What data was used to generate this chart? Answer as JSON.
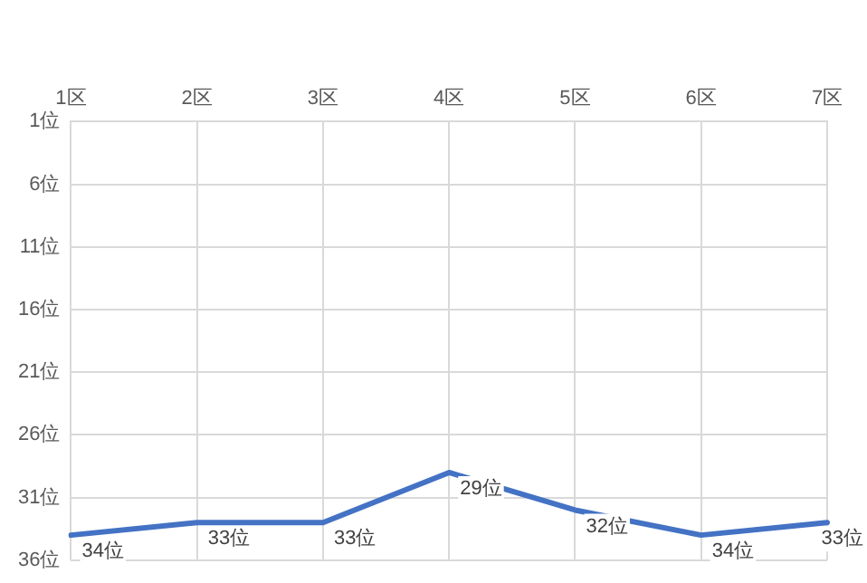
{
  "chart_data": {
    "type": "line",
    "categories": [
      "1区",
      "2区",
      "3区",
      "4区",
      "5区",
      "6区",
      "7区"
    ],
    "series": [
      {
        "color": "#4472c4",
        "values": [
          34,
          33,
          33,
          29,
          32,
          34,
          33
        ],
        "value_labels": [
          "34位",
          "33位",
          "33位",
          "29位",
          "32位",
          "34位",
          "33位"
        ]
      }
    ],
    "ylim": [
      36,
      1
    ],
    "yticks": [
      {
        "value": 1,
        "label": "1位"
      },
      {
        "value": 6,
        "label": "6位"
      },
      {
        "value": 11,
        "label": "11位"
      },
      {
        "value": 16,
        "label": "16位"
      },
      {
        "value": 21,
        "label": "21位"
      },
      {
        "value": 26,
        "label": "26位"
      },
      {
        "value": 31,
        "label": "31位"
      },
      {
        "value": 36,
        "label": "36位"
      }
    ],
    "grid": true,
    "legend": false,
    "marker": "none",
    "line_style": "solid"
  }
}
